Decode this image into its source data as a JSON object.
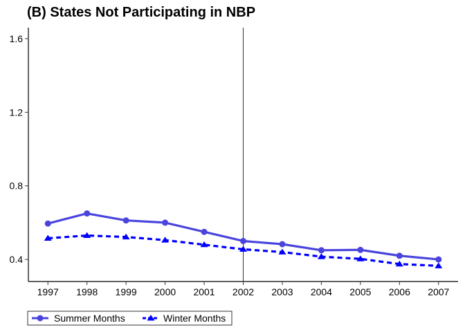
{
  "chart_data": {
    "type": "line",
    "title": "(B) States Not Participating in NBP",
    "xlabel": "",
    "ylabel": "",
    "x": [
      1997,
      1998,
      1999,
      2000,
      2001,
      2002,
      2003,
      2004,
      2005,
      2006,
      2007
    ],
    "x_tick_labels": [
      "1997",
      "1998",
      "1999",
      "2000",
      "2001",
      "2002",
      "2003",
      "2004",
      "2005",
      "2006",
      "2007"
    ],
    "y_ticks": [
      0.4,
      0.8,
      1.2,
      1.6
    ],
    "y_tick_labels": [
      "0.4",
      "0.8",
      "1.2",
      "1.6"
    ],
    "ylim": [
      0.28,
      1.66
    ],
    "xlim": [
      1996.5,
      2007.5
    ],
    "grid": false,
    "vline_x": 2002,
    "legend_position": "bottom-left",
    "series": [
      {
        "name": "Summer Months",
        "values": [
          0.595,
          0.65,
          0.612,
          0.6,
          0.55,
          0.5,
          0.483,
          0.45,
          0.452,
          0.42,
          0.4
        ],
        "color": "#4a44dd",
        "line_style": "solid",
        "marker": "circle"
      },
      {
        "name": "Winter Months",
        "values": [
          0.515,
          0.53,
          0.522,
          0.505,
          0.48,
          0.455,
          0.44,
          0.415,
          0.403,
          0.375,
          0.365
        ],
        "color": "#0000ff",
        "line_style": "dashed",
        "marker": "triangle"
      }
    ]
  }
}
